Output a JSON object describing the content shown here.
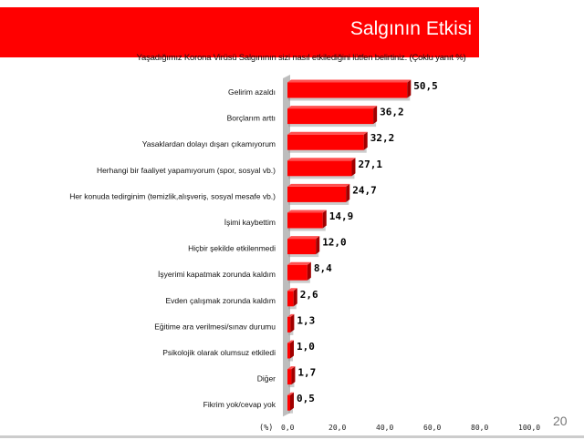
{
  "header": {
    "title": "Salgının Etkisi",
    "subtitle": "Yaşadığımız Korona Virüsü Salgınının sizi nasıl etkilediğini lütfen belirtiniz. (Çoklu yanıt %)"
  },
  "page_number": "20",
  "colors": {
    "bar": "#ff0000",
    "header": "#ff0000"
  },
  "chart_data": {
    "type": "bar",
    "orientation": "horizontal",
    "title": "Salgının Etkisi",
    "xlabel": "(%)",
    "xlim": [
      0,
      100
    ],
    "xticks": [
      "0,0",
      "20,0",
      "40,0",
      "60,0",
      "80,0",
      "100,0"
    ],
    "categories": [
      "Gelirim azaldı",
      "Borçlarım arttı",
      "Yasaklardan dolayı dışarı çıkamıyorum",
      "Herhangi bir faaliyet yapamıyorum (spor, sosyal vb.)",
      "Her konuda tedirginim (temizlik,alışveriş, sosyal mesafe vb.)",
      "İşimi kaybettim",
      "Hiçbir şekilde etkilenmedi",
      "İşyerimi kapatmak zorunda kaldım",
      "Evden çalışmak zorunda kaldım",
      "Eğitime ara verilmesi/sınav durumu",
      "Psikolojik olarak olumsuz etkiledi",
      "Diğer",
      "Fikrim yok/cevap yok"
    ],
    "values": [
      50.5,
      36.2,
      32.2,
      27.1,
      24.7,
      14.9,
      12.0,
      8.4,
      2.6,
      1.3,
      1.0,
      1.7,
      0.5
    ],
    "labels": [
      "50,5",
      "36,2",
      "32,2",
      "27,1",
      "24,7",
      "14,9",
      "12,0",
      "8,4",
      "2,6",
      "1,3",
      "1,0",
      "1,7",
      "0,5"
    ]
  }
}
